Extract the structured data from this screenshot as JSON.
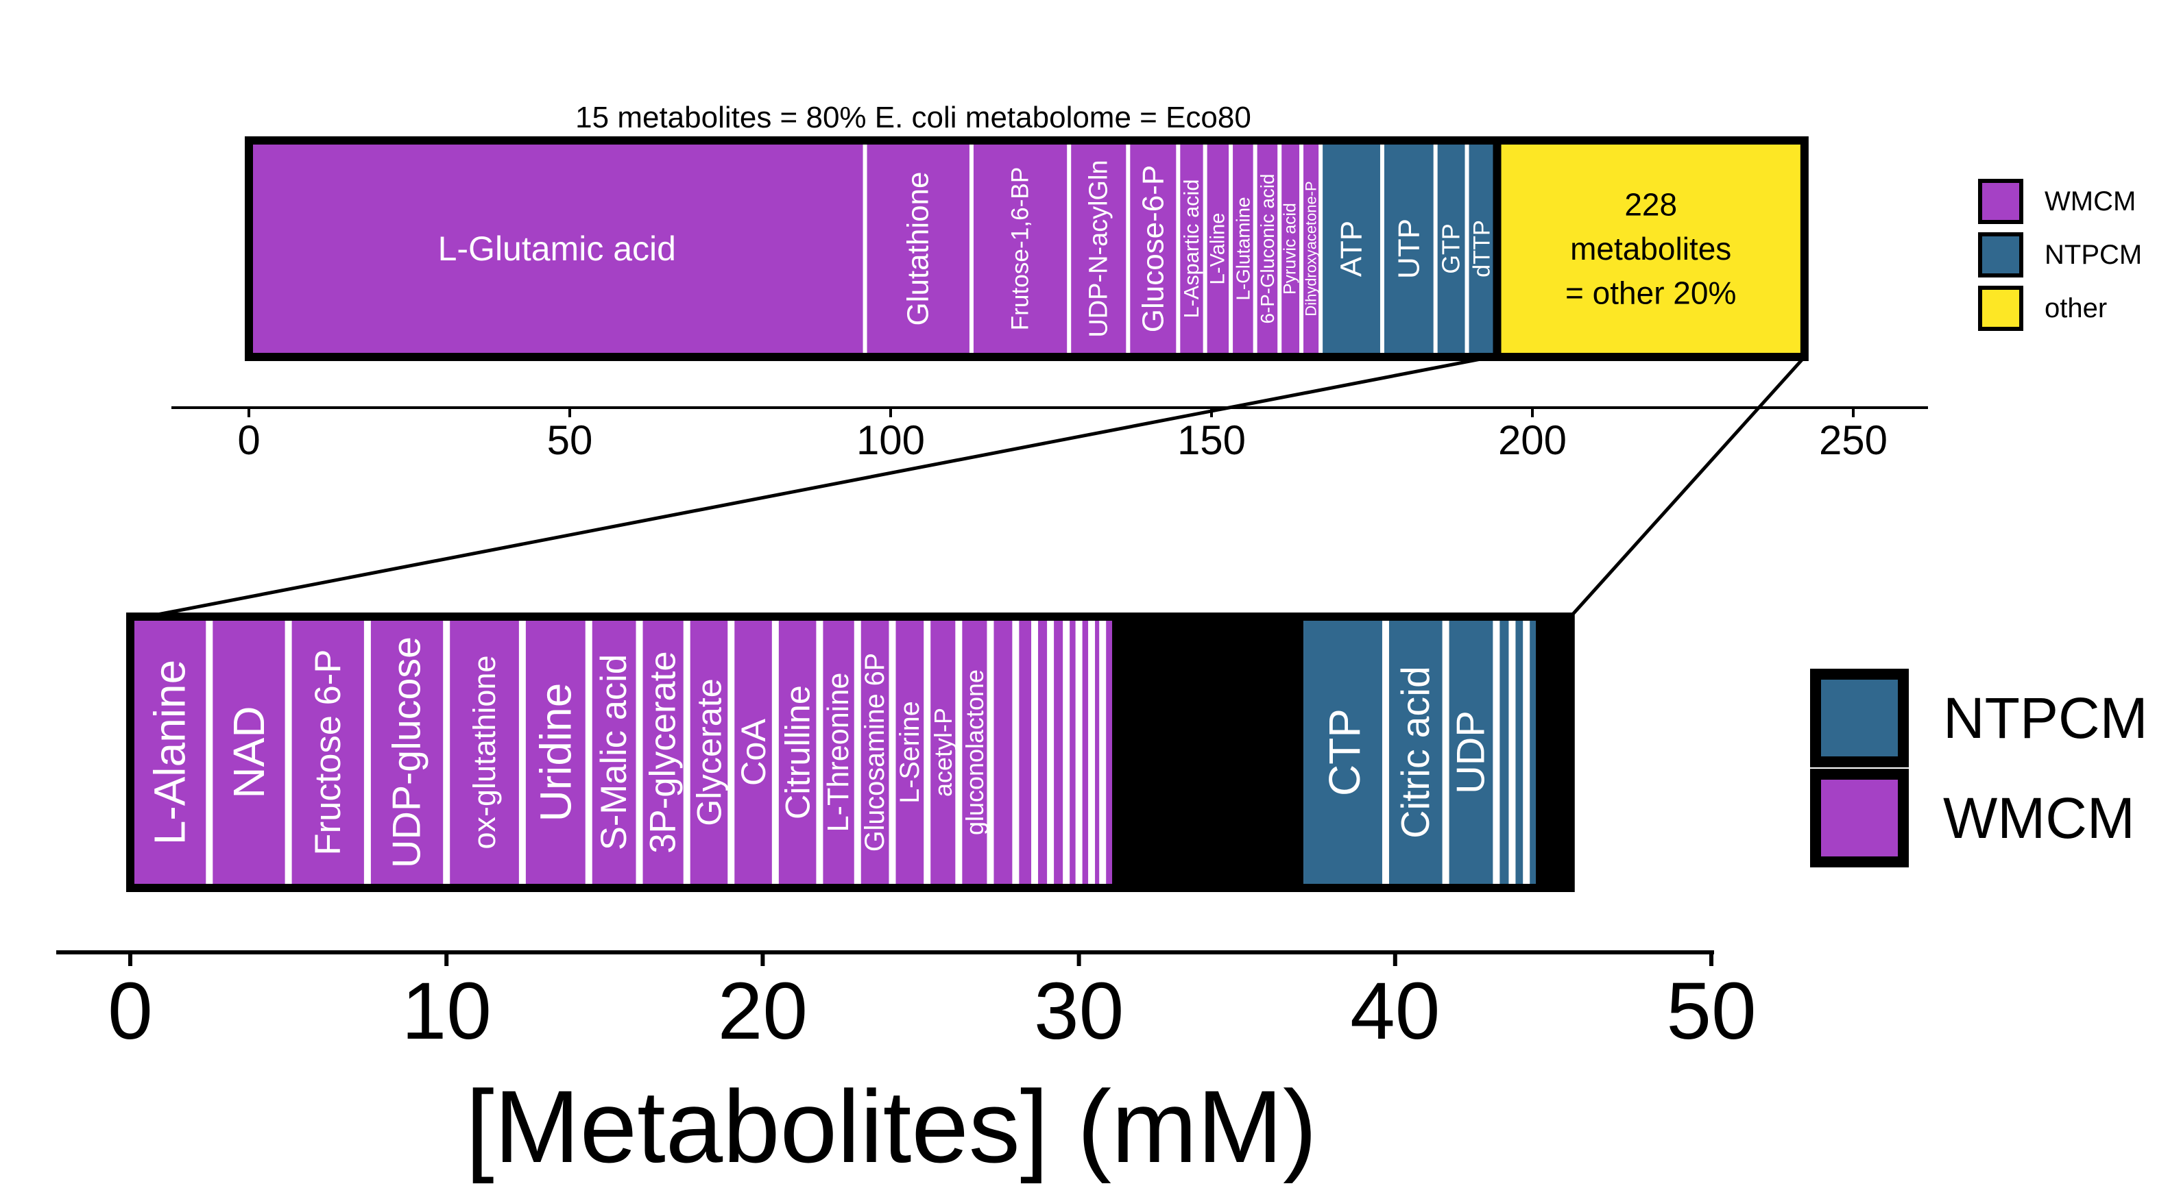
{
  "colors": {
    "WMCM": "#a541c5",
    "NTPCM": "#31688e",
    "other": "#fde725",
    "edge": "#000000",
    "divider": "#ffffff"
  },
  "chart_data": [
    {
      "type": "bar",
      "orientation": "horizontal-stacked",
      "title": "15 metabolites = 80% E. coli metabolome = Eco80",
      "xlabel": "",
      "xlim": [
        0,
        250
      ],
      "xticks": [
        0,
        50,
        100,
        150,
        200,
        250
      ],
      "segments": [
        {
          "label": "L-Glutamic acid",
          "value": 96.0,
          "category": "WMCM"
        },
        {
          "label": "Glutathione",
          "value": 16.6,
          "category": "WMCM"
        },
        {
          "label": "Frutose-1,6-BP",
          "value": 15.2,
          "category": "WMCM"
        },
        {
          "label": "UDP-N-acylGln",
          "value": 9.2,
          "category": "WMCM"
        },
        {
          "label": "Glucose-6-P",
          "value": 7.8,
          "category": "WMCM"
        },
        {
          "label": "L-Aspartic acid",
          "value": 4.2,
          "category": "WMCM"
        },
        {
          "label": "L-Valine",
          "value": 4.0,
          "category": "WMCM"
        },
        {
          "label": "L-Glutamine",
          "value": 3.8,
          "category": "WMCM"
        },
        {
          "label": "6-P-Gluconic acid",
          "value": 3.8,
          "category": "WMCM"
        },
        {
          "label": "Pyruvic acid",
          "value": 3.4,
          "category": "WMCM"
        },
        {
          "label": "Dihydroxyacetone-P",
          "value": 3.0,
          "category": "WMCM"
        },
        {
          "label": "ATP",
          "value": 9.6,
          "category": "NTPCM"
        },
        {
          "label": "UTP",
          "value": 8.3,
          "category": "NTPCM"
        },
        {
          "label": "GTP",
          "value": 4.9,
          "category": "NTPCM"
        },
        {
          "label": "dTTP",
          "value": 4.7,
          "category": "NTPCM"
        },
        {
          "label": "228\nmetabolites\n= other 20%",
          "value": 47.9,
          "category": "other"
        }
      ],
      "legend": {
        "position": "right",
        "entries": [
          "WMCM",
          "NTPCM",
          "other"
        ]
      }
    },
    {
      "type": "bar",
      "orientation": "horizontal-stacked",
      "title": "",
      "xlabel": "[Metabolites] (mM)",
      "xlim": [
        0,
        50
      ],
      "xticks": [
        0,
        10,
        20,
        30,
        40,
        50
      ],
      "segments": [
        {
          "label": "L-Alanine",
          "value": 2.5,
          "category": "WMCM"
        },
        {
          "label": "NAD",
          "value": 2.5,
          "category": "WMCM"
        },
        {
          "label": "Fructose 6-P",
          "value": 2.5,
          "category": "WMCM"
        },
        {
          "label": "UDP-glucose",
          "value": 2.5,
          "category": "WMCM"
        },
        {
          "label": "ox-glutathione",
          "value": 2.4,
          "category": "WMCM"
        },
        {
          "label": "Uridine",
          "value": 2.1,
          "category": "WMCM"
        },
        {
          "label": "S-Malic acid",
          "value": 1.6,
          "category": "WMCM"
        },
        {
          "label": "3P-glycerate",
          "value": 1.5,
          "category": "WMCM"
        },
        {
          "label": "Glycerate",
          "value": 1.4,
          "category": "WMCM"
        },
        {
          "label": "CoA",
          "value": 1.4,
          "category": "WMCM"
        },
        {
          "label": "Citrulline",
          "value": 1.4,
          "category": "WMCM"
        },
        {
          "label": "L-Threonine",
          "value": 1.2,
          "category": "WMCM"
        },
        {
          "label": "Glucosamine 6P",
          "value": 1.1,
          "category": "WMCM"
        },
        {
          "label": "L-Serine",
          "value": 1.1,
          "category": "WMCM"
        },
        {
          "label": "acetyl-P",
          "value": 1.0,
          "category": "WMCM"
        },
        {
          "label": "gluconolactone",
          "value": 1.0,
          "category": "WMCM"
        },
        {
          "label": "",
          "value": 0.8,
          "category": "WMCM"
        },
        {
          "label": "",
          "value": 0.6,
          "category": "WMCM"
        },
        {
          "label": "",
          "value": 0.5,
          "category": "WMCM"
        },
        {
          "label": "",
          "value": 0.5,
          "category": "WMCM"
        },
        {
          "label": "",
          "value": 0.4,
          "category": "WMCM"
        },
        {
          "label": "",
          "value": 0.4,
          "category": "WMCM"
        },
        {
          "label": "",
          "value": 0.35,
          "category": "WMCM"
        },
        {
          "label": "",
          "value": 0.3,
          "category": "WMCM"
        },
        {
          "label": "",
          "value": 6.05,
          "category": "black"
        },
        {
          "label": "CTP",
          "value": 2.6,
          "category": "NTPCM"
        },
        {
          "label": "Citric acid",
          "value": 1.9,
          "category": "NTPCM"
        },
        {
          "label": "UDP",
          "value": 1.6,
          "category": "NTPCM"
        },
        {
          "label": "",
          "value": 0.5,
          "category": "NTPCM"
        },
        {
          "label": "",
          "value": 0.45,
          "category": "NTPCM"
        },
        {
          "label": "",
          "value": 0.3,
          "category": "NTPCM"
        },
        {
          "label": "",
          "value": 1.1,
          "category": "black"
        }
      ],
      "legend": {
        "position": "right",
        "entries": [
          "NTPCM",
          "WMCM"
        ]
      }
    }
  ]
}
